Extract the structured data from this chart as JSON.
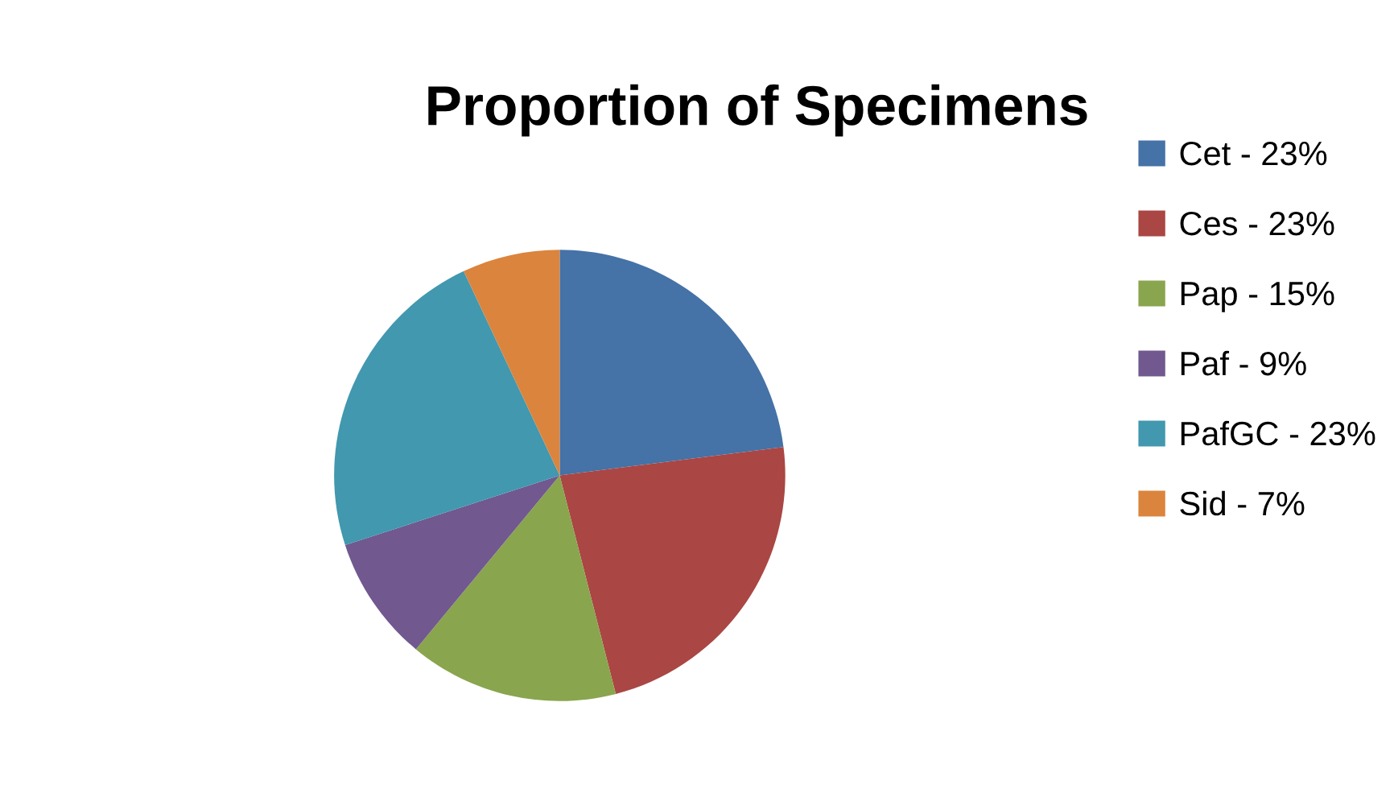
{
  "chart_data": {
    "type": "pie",
    "title": "Proportion of Specimens",
    "categories": [
      "Cet - 23%",
      "Ces - 23%",
      "Pap - 15%",
      "Paf - 9%",
      "PafGC - 23%",
      "Sid - 7%"
    ],
    "values": [
      23,
      23,
      15,
      9,
      23,
      7
    ],
    "colors": [
      "#4572a7",
      "#aa4643",
      "#89a54e",
      "#71588f",
      "#4198af",
      "#db843d"
    ],
    "legend": "right"
  }
}
